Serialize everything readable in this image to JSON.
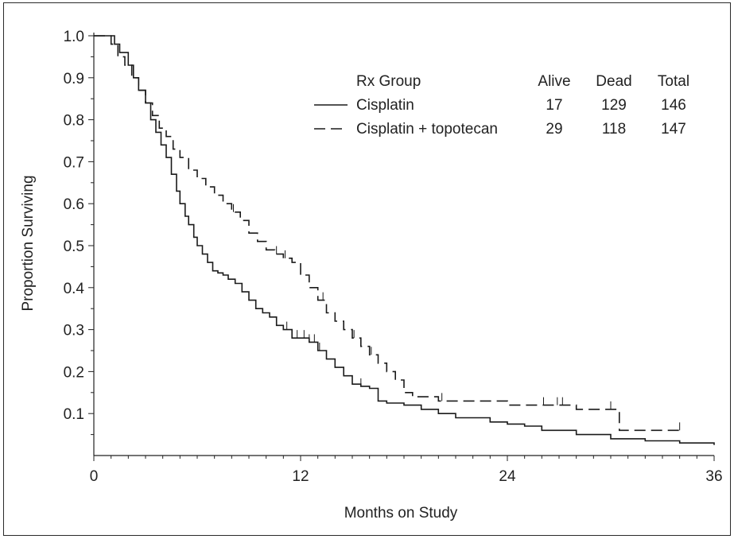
{
  "chart_data": {
    "type": "line",
    "title": "",
    "xlabel": "Months on Study",
    "ylabel": "Proportion Surviving",
    "xlim": [
      0,
      36
    ],
    "ylim": [
      0,
      1.0
    ],
    "x_ticks": [
      "0",
      "12",
      "24",
      "36"
    ],
    "y_ticks": [
      "0.1",
      "0.2",
      "0.3",
      "0.4",
      "0.5",
      "0.6",
      "0.7",
      "0.8",
      "0.9",
      "1.0"
    ],
    "grid": false,
    "legend_position": "top-right",
    "legend": {
      "headers": [
        "Rx Group",
        "Alive",
        "Dead",
        "Total"
      ],
      "rows": [
        {
          "group": "Cisplatin",
          "alive": "17",
          "dead": "129",
          "total": "146"
        },
        {
          "group": "Cisplatin + topotecan",
          "alive": "29",
          "dead": "118",
          "total": "147"
        }
      ]
    },
    "series": [
      {
        "name": "Cisplatin",
        "style": "solid",
        "color": "#1a1a1a",
        "x": [
          0,
          1.2,
          1.5,
          2.0,
          2.3,
          2.6,
          3.0,
          3.3,
          3.6,
          3.9,
          4.2,
          4.5,
          4.8,
          5.0,
          5.3,
          5.5,
          5.8,
          6.0,
          6.3,
          6.6,
          6.9,
          7.2,
          7.5,
          7.8,
          8.2,
          8.6,
          9.0,
          9.4,
          9.8,
          10.2,
          10.6,
          11.0,
          11.5,
          12.0,
          12.5,
          13.0,
          13.5,
          14.0,
          14.5,
          15.0,
          15.5,
          16.0,
          16.5,
          17.0,
          18.0,
          19.0,
          20.0,
          21.0,
          22.0,
          23.0,
          24.0,
          25.0,
          26.0,
          28.0,
          30.0,
          32.0,
          34.0,
          36.0
        ],
        "y": [
          1.0,
          0.98,
          0.96,
          0.93,
          0.9,
          0.87,
          0.84,
          0.8,
          0.77,
          0.74,
          0.71,
          0.67,
          0.63,
          0.6,
          0.57,
          0.55,
          0.52,
          0.5,
          0.48,
          0.46,
          0.44,
          0.435,
          0.43,
          0.42,
          0.41,
          0.39,
          0.37,
          0.35,
          0.34,
          0.33,
          0.31,
          0.3,
          0.28,
          0.28,
          0.27,
          0.25,
          0.23,
          0.21,
          0.19,
          0.17,
          0.165,
          0.16,
          0.13,
          0.125,
          0.12,
          0.11,
          0.1,
          0.09,
          0.09,
          0.08,
          0.075,
          0.07,
          0.06,
          0.05,
          0.04,
          0.035,
          0.03,
          0.025
        ],
        "censored_x": [
          11.2,
          11.5,
          11.8,
          12.2,
          12.5,
          12.8,
          13.1,
          15.5
        ]
      },
      {
        "name": "Cisplatin + topotecan",
        "style": "dashed",
        "color": "#1a1a1a",
        "x": [
          0,
          1.0,
          1.4,
          1.8,
          2.2,
          2.6,
          3.0,
          3.4,
          3.8,
          4.2,
          4.6,
          5.0,
          5.5,
          6.0,
          6.5,
          7.0,
          7.5,
          8.0,
          8.5,
          9.0,
          9.5,
          10.0,
          10.5,
          11.0,
          11.5,
          12.0,
          12.5,
          13.0,
          13.5,
          14.0,
          14.5,
          15.0,
          15.5,
          16.0,
          16.5,
          17.0,
          17.5,
          18.0,
          18.5,
          19.0,
          20.0,
          22.0,
          24.0,
          26.0,
          28.0,
          29.0,
          30.0,
          30.5,
          31.0,
          34.0
        ],
        "y": [
          1.0,
          0.98,
          0.95,
          0.93,
          0.9,
          0.87,
          0.84,
          0.81,
          0.78,
          0.76,
          0.73,
          0.71,
          0.68,
          0.66,
          0.64,
          0.62,
          0.6,
          0.58,
          0.56,
          0.53,
          0.51,
          0.49,
          0.48,
          0.47,
          0.46,
          0.43,
          0.4,
          0.37,
          0.34,
          0.32,
          0.3,
          0.28,
          0.26,
          0.24,
          0.22,
          0.2,
          0.18,
          0.15,
          0.14,
          0.14,
          0.13,
          0.13,
          0.12,
          0.12,
          0.11,
          0.11,
          0.11,
          0.06,
          0.06,
          0.06
        ],
        "censored_x": [
          8.1,
          10.6,
          11.1,
          12.0,
          13.3,
          14.5,
          15.1,
          16.1,
          20.2,
          26.1,
          26.9,
          27.2,
          30.0,
          34.0
        ]
      }
    ]
  }
}
